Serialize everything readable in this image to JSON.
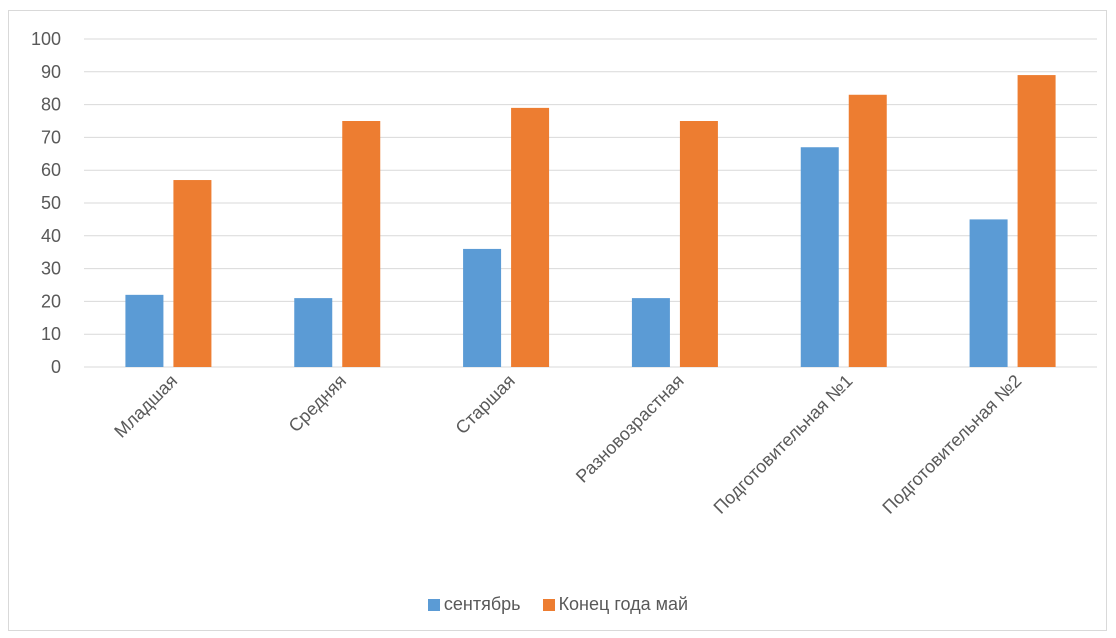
{
  "colors": {
    "series_0": "#5b9bd5",
    "series_1": "#ed7d31",
    "grid": "#d9d9d9",
    "text": "#595959"
  },
  "chart_data": {
    "type": "bar",
    "title": "",
    "xlabel": "",
    "ylabel": "",
    "ylim": [
      0,
      100
    ],
    "ytick_step": 10,
    "yticks": [
      "0",
      "10",
      "20",
      "30",
      "40",
      "50",
      "60",
      "70",
      "80",
      "90",
      "100"
    ],
    "grid": true,
    "legend_position": "bottom",
    "categories": [
      "Младшая",
      "Средняя",
      "Старшая",
      "Разновозрастная",
      "Подготовительная №1",
      "Подготовительная №2"
    ],
    "series": [
      {
        "name": "сентябрь",
        "values": [
          22,
          21,
          36,
          21,
          67,
          45
        ]
      },
      {
        "name": "Конец года май",
        "values": [
          57,
          75,
          79,
          75,
          83,
          89
        ]
      }
    ]
  }
}
